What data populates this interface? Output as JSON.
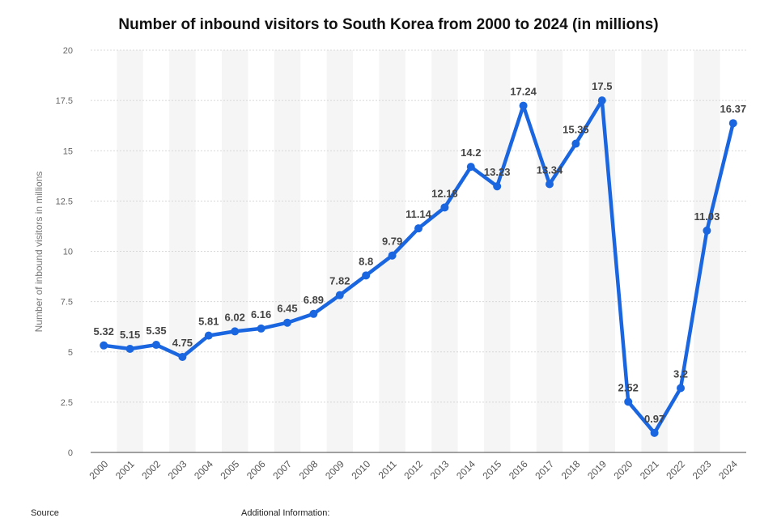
{
  "chart_data": {
    "type": "line",
    "title": "Number of inbound visitors to South Korea from 2000 to 2024 (in millions)",
    "xlabel": "",
    "ylabel": "Number of inbound visitors in millions",
    "ylim": [
      0,
      20
    ],
    "yticks": [
      "0",
      "2.5",
      "5",
      "7.5",
      "10",
      "12.5",
      "15",
      "17.5",
      "20"
    ],
    "categories": [
      "2000",
      "2001",
      "2002",
      "2003",
      "2004",
      "2005",
      "2006",
      "2007",
      "2008",
      "2009",
      "2010",
      "2011",
      "2012",
      "2013",
      "2014",
      "2015",
      "2016",
      "2017",
      "2018",
      "2019",
      "2020",
      "2021",
      "2022",
      "2023",
      "2024"
    ],
    "series": [
      {
        "values": [
          5.32,
          5.15,
          5.35,
          4.75,
          5.81,
          6.02,
          6.16,
          6.45,
          6.89,
          7.82,
          8.8,
          9.79,
          11.14,
          12.18,
          14.2,
          13.23,
          17.24,
          13.34,
          15.35,
          17.5,
          2.52,
          0.97,
          3.2,
          11.03,
          16.37
        ],
        "labels": [
          "5.32",
          "5.15",
          "5.35",
          "4.75",
          "5.81",
          "6.02",
          "6.16",
          "6.45",
          "6.89",
          "7.82",
          "8.8",
          "9.79",
          "11.14",
          "12.18",
          "14.2",
          "13.23",
          "17.24",
          "13.34",
          "15.35",
          "17.5",
          "2.52",
          "0.97",
          "3.2",
          "11.03",
          "16.37"
        ]
      }
    ],
    "grid": true,
    "line_color": "#1a66e0"
  },
  "footer": {
    "source": "Source",
    "additional": "Additional Information:"
  }
}
